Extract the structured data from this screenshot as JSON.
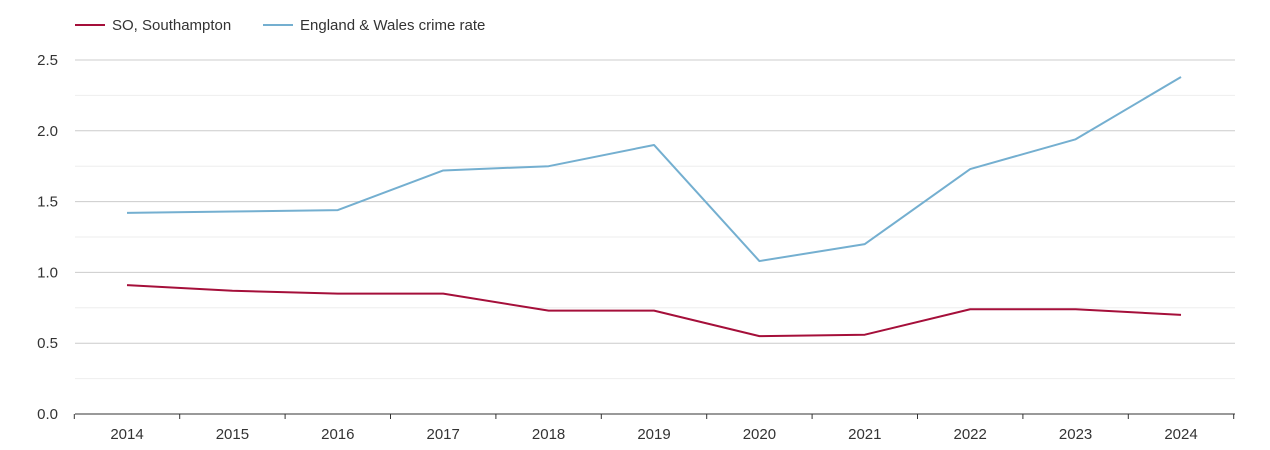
{
  "chart_data": {
    "type": "line",
    "categories": [
      "2014",
      "2015",
      "2016",
      "2017",
      "2018",
      "2019",
      "2020",
      "2021",
      "2022",
      "2023",
      "2024"
    ],
    "series": [
      {
        "name": "SO, Southampton",
        "color": "#a50f3a",
        "values": [
          0.91,
          0.87,
          0.85,
          0.85,
          0.73,
          0.73,
          0.55,
          0.56,
          0.74,
          0.74,
          0.7
        ]
      },
      {
        "name": "England & Wales crime rate",
        "color": "#74afd0",
        "values": [
          1.42,
          1.43,
          1.44,
          1.72,
          1.75,
          1.9,
          1.08,
          1.2,
          1.73,
          1.94,
          2.38
        ]
      }
    ],
    "yticks": [
      "0.0",
      "0.5",
      "1.0",
      "1.5",
      "2.0",
      "2.5"
    ],
    "ylim": [
      0,
      2.5
    ],
    "grid": true,
    "legend_position": "top-left",
    "title": "",
    "xlabel": "",
    "ylabel": ""
  }
}
